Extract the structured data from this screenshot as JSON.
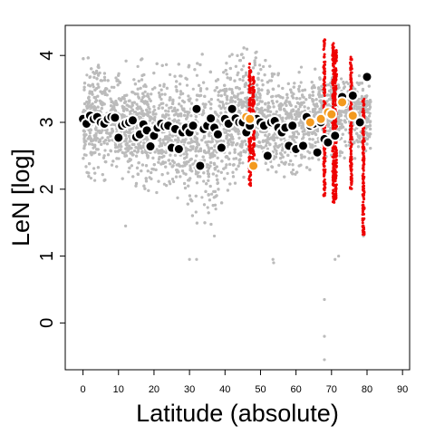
{
  "chart_data": {
    "type": "scatter",
    "xlabel": "Latitude (absolute)",
    "ylabel": "LeN [log]",
    "xlim": [
      -5,
      92
    ],
    "ylim": [
      -0.7,
      4.45
    ],
    "x_ticks": [
      0,
      10,
      20,
      30,
      40,
      50,
      60,
      70,
      80,
      90
    ],
    "y_ticks": [
      0,
      1,
      2,
      3,
      4
    ],
    "grid": false,
    "colors": {
      "background_points": "#bbbbbb",
      "highlight_points": "#ee0000",
      "mean_black": "#000000",
      "mean_orange": "#f39a1e",
      "point_outline": "#ffffff"
    },
    "series": [
      {
        "kind": "background-cloud",
        "color": "#bbbbbb",
        "x_range": [
          0,
          81
        ],
        "band_low": [
          [
            0,
            2.1
          ],
          [
            10,
            2.1
          ],
          [
            20,
            1.9
          ],
          [
            25,
            1.75
          ],
          [
            30,
            1.55
          ],
          [
            35,
            1.4
          ],
          [
            40,
            1.75
          ],
          [
            45,
            1.9
          ],
          [
            50,
            2.15
          ],
          [
            55,
            2.05
          ],
          [
            60,
            2.2
          ],
          [
            65,
            2.3
          ],
          [
            70,
            2.5
          ],
          [
            75,
            2.4
          ],
          [
            80,
            2.5
          ]
        ],
        "band_high": [
          [
            0,
            4.0
          ],
          [
            10,
            3.95
          ],
          [
            20,
            3.95
          ],
          [
            25,
            3.9
          ],
          [
            30,
            4.0
          ],
          [
            35,
            4.1
          ],
          [
            40,
            4.05
          ],
          [
            45,
            4.2
          ],
          [
            50,
            4.05
          ],
          [
            55,
            3.9
          ],
          [
            60,
            3.85
          ],
          [
            65,
            3.85
          ],
          [
            70,
            3.8
          ],
          [
            75,
            3.75
          ],
          [
            80,
            3.7
          ]
        ],
        "outliers": [
          [
            12,
            1.45
          ],
          [
            30,
            0.95
          ],
          [
            32,
            0.95
          ],
          [
            37,
            1.3
          ],
          [
            53.5,
            0.95
          ],
          [
            53.7,
            0.9
          ],
          [
            68,
            0.35
          ],
          [
            68,
            -0.2
          ],
          [
            68,
            -0.55
          ],
          [
            71,
            0.95
          ],
          [
            72,
            1.0
          ],
          [
            79,
            1.3
          ]
        ]
      },
      {
        "kind": "highlight-columns",
        "color": "#ee0000",
        "columns": [
          {
            "x": 47,
            "y_min": 2.05,
            "y_max": 3.95
          },
          {
            "x": 48,
            "y_min": 2.35,
            "y_max": 3.7
          },
          {
            "x": 68,
            "y_min": 1.9,
            "y_max": 4.25
          },
          {
            "x": 70.5,
            "y_min": 1.8,
            "y_max": 4.2
          },
          {
            "x": 71.2,
            "y_min": 1.85,
            "y_max": 4.1
          },
          {
            "x": 75.5,
            "y_min": 2.0,
            "y_max": 4.0
          },
          {
            "x": 79,
            "y_min": 1.3,
            "y_max": 3.4
          }
        ]
      },
      {
        "kind": "means-black",
        "color": "#000000",
        "points": [
          [
            0,
            3.05
          ],
          [
            1,
            2.98
          ],
          [
            2,
            3.1
          ],
          [
            3,
            3.05
          ],
          [
            4,
            3.08
          ],
          [
            5,
            3.0
          ],
          [
            6,
            2.98
          ],
          [
            7,
            3.05
          ],
          [
            8,
            3.08
          ],
          [
            9,
            3.07
          ],
          [
            10,
            2.77
          ],
          [
            11,
            2.95
          ],
          [
            12,
            2.98
          ],
          [
            13,
            3.0
          ],
          [
            14,
            3.03
          ],
          [
            15,
            2.78
          ],
          [
            16,
            2.82
          ],
          [
            17,
            2.97
          ],
          [
            18,
            2.88
          ],
          [
            19,
            2.64
          ],
          [
            20,
            2.8
          ],
          [
            21,
            2.92
          ],
          [
            22,
            2.98
          ],
          [
            23,
            2.94
          ],
          [
            24,
            2.95
          ],
          [
            25,
            2.62
          ],
          [
            26,
            2.9
          ],
          [
            27,
            2.6
          ],
          [
            28,
            2.85
          ],
          [
            29,
            2.92
          ],
          [
            30,
            2.85
          ],
          [
            31,
            2.95
          ],
          [
            32,
            3.2
          ],
          [
            33,
            2.35
          ],
          [
            34,
            2.9
          ],
          [
            35,
            2.95
          ],
          [
            36,
            3.06
          ],
          [
            37,
            2.92
          ],
          [
            38,
            2.82
          ],
          [
            39,
            2.62
          ],
          [
            40,
            3.05
          ],
          [
            41,
            2.98
          ],
          [
            42,
            3.2
          ],
          [
            43,
            3.06
          ],
          [
            44,
            3.0
          ],
          [
            45,
            3.0
          ],
          [
            46,
            2.85
          ],
          [
            47,
            2.95
          ],
          [
            48,
            3.06
          ],
          [
            49,
            3.05
          ],
          [
            50,
            3.0
          ],
          [
            51,
            2.95
          ],
          [
            52,
            2.5
          ],
          [
            53,
            3.0
          ],
          [
            54,
            3.02
          ],
          [
            55,
            2.92
          ],
          [
            56,
            2.85
          ],
          [
            57,
            2.92
          ],
          [
            58,
            2.65
          ],
          [
            59,
            2.95
          ],
          [
            60,
            2.6
          ],
          [
            62,
            2.65
          ],
          [
            63,
            3.08
          ],
          [
            64,
            2.95
          ],
          [
            65,
            2.98
          ],
          [
            66,
            2.55
          ],
          [
            67,
            3.0
          ],
          [
            68,
            2.75
          ],
          [
            69,
            2.7
          ],
          [
            71,
            2.8
          ],
          [
            73,
            3.38
          ],
          [
            76,
            3.4
          ],
          [
            78,
            3.0
          ],
          [
            80,
            3.68
          ]
        ]
      },
      {
        "kind": "means-orange",
        "color": "#f39a1e",
        "points": [
          [
            46,
            3.08
          ],
          [
            47,
            3.05
          ],
          [
            48,
            2.35
          ],
          [
            64,
            3.0
          ],
          [
            67,
            3.05
          ],
          [
            69,
            3.15
          ],
          [
            70,
            3.12
          ],
          [
            73,
            3.3
          ],
          [
            76,
            3.1
          ]
        ]
      }
    ]
  }
}
